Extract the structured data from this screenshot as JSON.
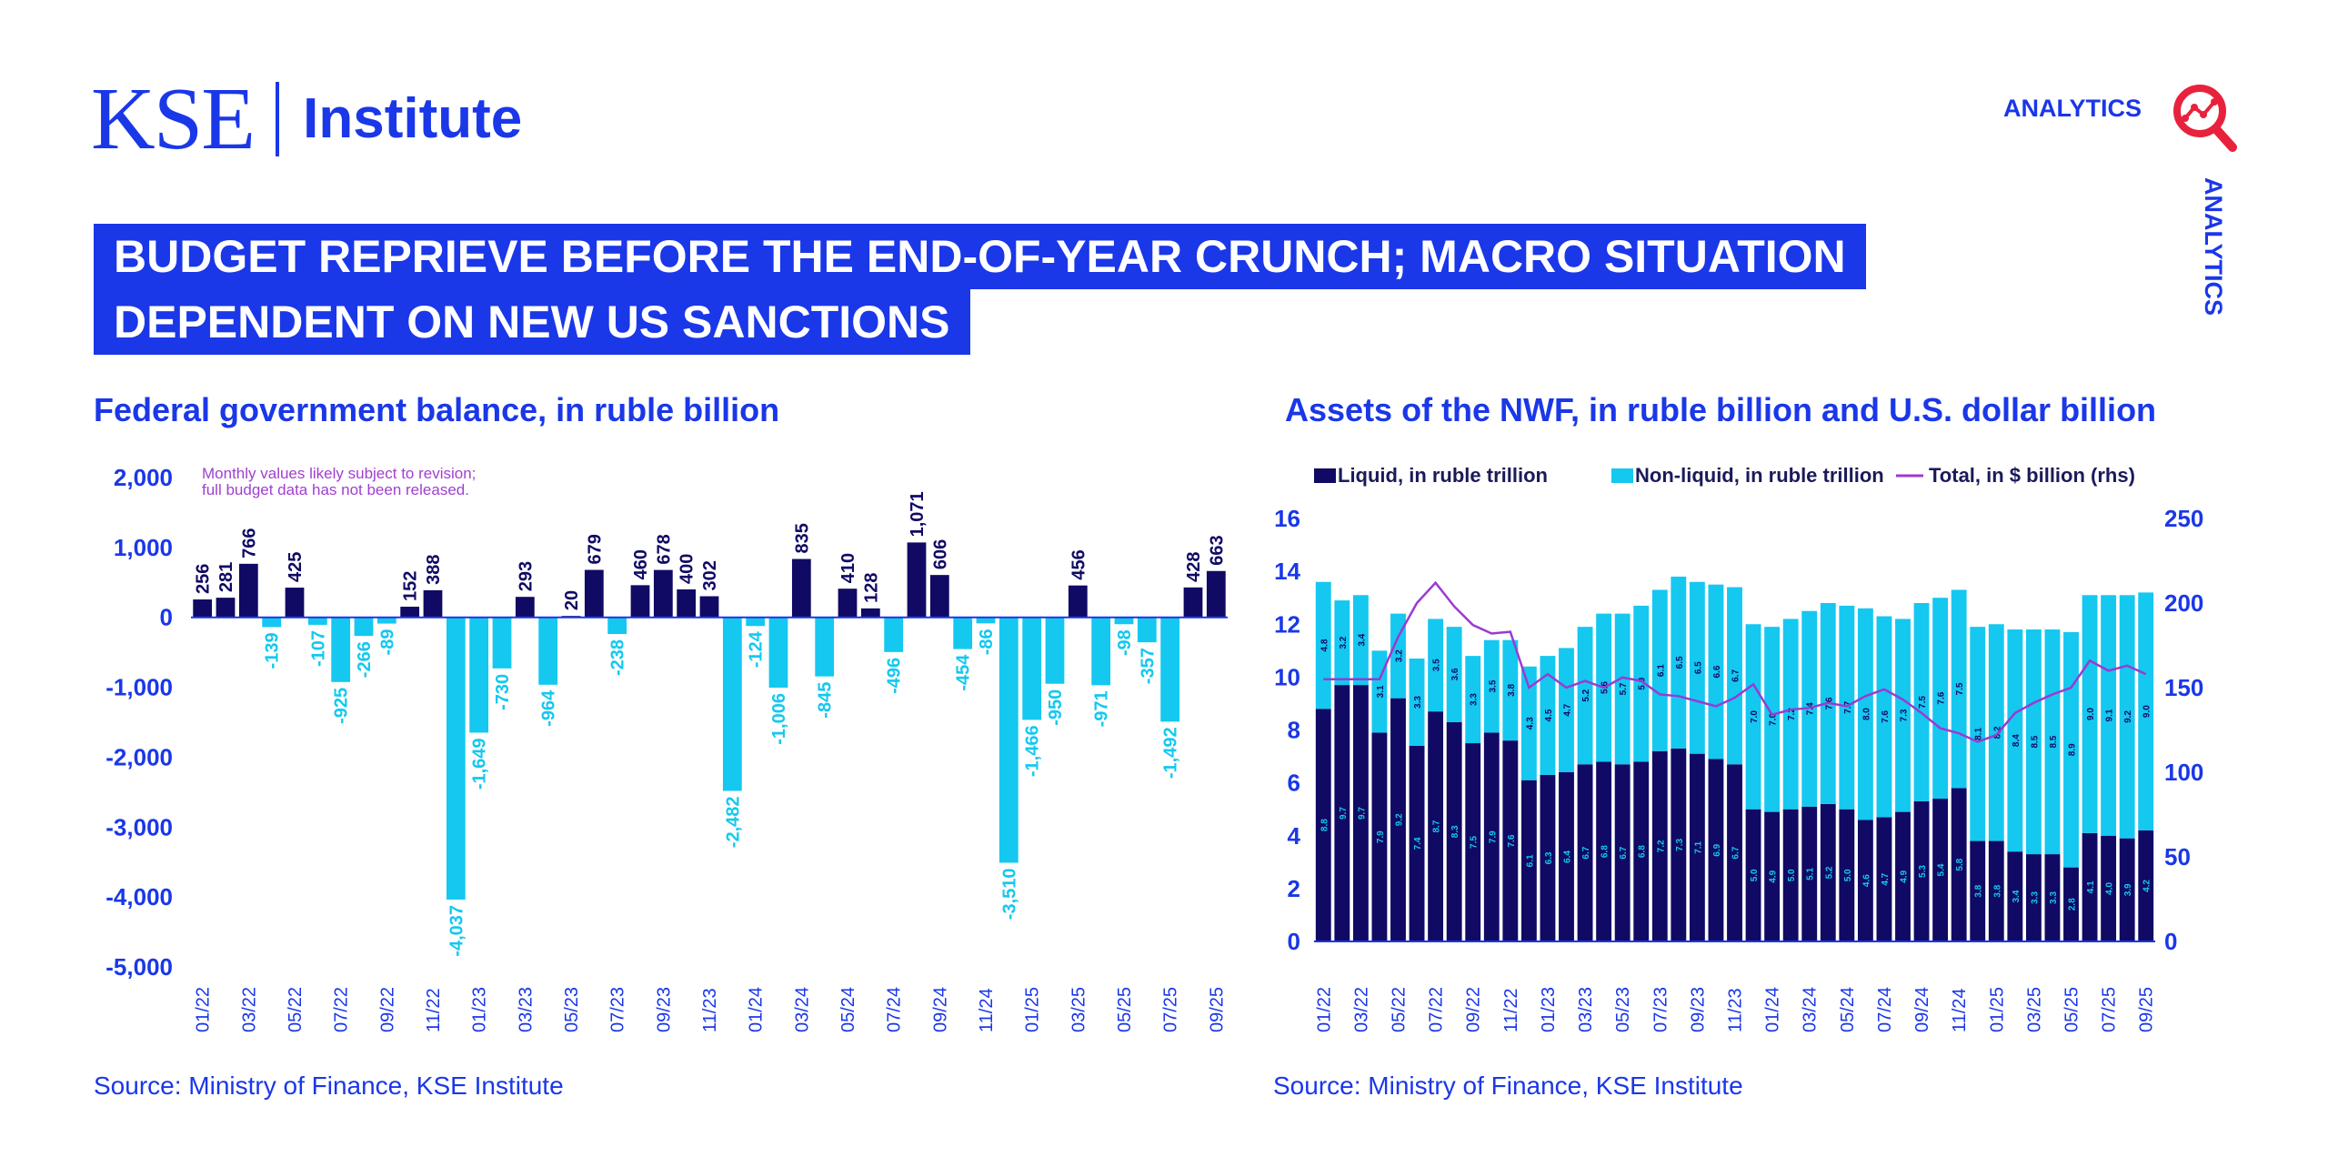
{
  "brand": {
    "kse": "KSE",
    "institute": "Institute",
    "analytics": "ANALYTICS"
  },
  "colors": {
    "brand_blue": "#1a37e8",
    "navy": "#100a64",
    "cyan": "#14c8f0",
    "purple": "#9b3ad2",
    "icon_red": "#e8223c"
  },
  "headline": {
    "line1": "BUDGET REPRIEVE BEFORE THE END-OF-YEAR CRUNCH; MACRO SITUATION",
    "line2": "DEPENDENT ON NEW US SANCTIONS"
  },
  "left_chart": {
    "title": "Federal government balance, in ruble billion",
    "note_line1": "Monthly values likely subject to revision;",
    "note_line2": "full budget data has not been released.",
    "source": "Source: Ministry of Finance, KSE Institute"
  },
  "right_chart": {
    "title": "Assets of the NWF, in ruble billion and U.S. dollar billion",
    "source": "Source: Ministry of Finance, KSE Institute"
  },
  "chart_data": [
    {
      "type": "bar",
      "title": "Federal government balance, in ruble billion",
      "ylim": [
        -5000,
        2000
      ],
      "yticks": [
        "2,000",
        "1,000",
        "0",
        "-1,000",
        "-2,000",
        "-3,000",
        "-4,000",
        "-5,000"
      ],
      "ytick_values": [
        2000,
        1000,
        0,
        -1000,
        -2000,
        -3000,
        -4000,
        -5000
      ],
      "categories": [
        "01/22",
        "02/22",
        "03/22",
        "04/22",
        "05/22",
        "06/22",
        "07/22",
        "08/22",
        "09/22",
        "10/22",
        "11/22",
        "12/22",
        "01/23",
        "02/23",
        "03/23",
        "04/23",
        "05/23",
        "06/23",
        "07/23",
        "08/23",
        "09/23",
        "10/23",
        "11/23",
        "12/23",
        "01/24",
        "02/24",
        "03/24",
        "04/24",
        "05/24",
        "06/24",
        "07/24",
        "08/24",
        "09/24",
        "10/24",
        "11/24",
        "12/24",
        "01/25",
        "02/25",
        "03/25",
        "04/25",
        "05/25",
        "06/25",
        "07/25",
        "08/25",
        "09/25"
      ],
      "xtick_labels": [
        "01/22",
        "03/22",
        "05/22",
        "07/22",
        "09/22",
        "11/22",
        "01/23",
        "03/23",
        "05/23",
        "07/23",
        "09/23",
        "11/23",
        "01/24",
        "03/24",
        "05/24",
        "07/24",
        "09/24",
        "11/24",
        "01/25",
        "03/25",
        "05/25",
        "07/25",
        "09/25"
      ],
      "values": [
        256,
        281,
        766,
        -139,
        425,
        -107,
        -925,
        -266,
        -89,
        152,
        388,
        -4037,
        -1649,
        -730,
        293,
        -964,
        20,
        679,
        -238,
        460,
        678,
        400,
        302,
        -2482,
        -124,
        -1006,
        835,
        -845,
        410,
        128,
        -496,
        1071,
        606,
        -454,
        -86,
        -3510,
        -1466,
        -950,
        456,
        -971,
        -98,
        -357,
        -1492,
        428,
        663
      ],
      "data_labels": [
        "256",
        "281",
        "766",
        "-139",
        "425",
        "-107",
        "-925",
        "-266",
        "-89",
        "152",
        "388",
        "-4,037",
        "-1,649",
        "-730",
        "293",
        "-964",
        "20",
        "679",
        "-238",
        "460",
        "678",
        "400",
        "302",
        "-2,482",
        "-124",
        "-1,006",
        "835",
        "-845",
        "410",
        "128",
        "-496",
        "1,071",
        "606",
        "-454",
        "-86",
        "-3,510",
        "-1,466",
        "-950",
        "456",
        "-971",
        "-98",
        "-357",
        "-1,492",
        "428",
        "663"
      ],
      "positive_color": "#100a64",
      "negative_color": "#14c8f0"
    },
    {
      "type": "bar",
      "stacked": true,
      "title": "Assets of the NWF, in ruble billion and U.S. dollar billion",
      "ylim": [
        0,
        16
      ],
      "yticks": [
        "16",
        "14",
        "12",
        "10",
        "8",
        "6",
        "4",
        "2",
        "0"
      ],
      "ytick_values": [
        16,
        14,
        12,
        10,
        8,
        6,
        4,
        2,
        0
      ],
      "y2lim": [
        0,
        250
      ],
      "y2ticks": [
        "250",
        "200",
        "150",
        "100",
        "50",
        "0"
      ],
      "y2tick_values": [
        250,
        200,
        150,
        100,
        50,
        0
      ],
      "legend_position": "top",
      "categories": [
        "01/22",
        "02/22",
        "03/22",
        "04/22",
        "05/22",
        "06/22",
        "07/22",
        "08/22",
        "09/22",
        "10/22",
        "11/22",
        "12/22",
        "01/23",
        "02/23",
        "03/23",
        "04/23",
        "05/23",
        "06/23",
        "07/23",
        "08/23",
        "09/23",
        "10/23",
        "11/23",
        "12/23",
        "01/24",
        "02/24",
        "03/24",
        "04/24",
        "05/24",
        "06/24",
        "07/24",
        "08/24",
        "09/24",
        "10/24",
        "11/24",
        "12/24",
        "01/25",
        "02/25",
        "03/25",
        "04/25",
        "05/25",
        "06/25",
        "07/25",
        "08/25",
        "09/25"
      ],
      "xtick_labels": [
        "01/22",
        "03/22",
        "05/22",
        "07/22",
        "09/22",
        "11/22",
        "01/23",
        "03/23",
        "05/23",
        "07/23",
        "09/23",
        "11/23",
        "01/24",
        "03/24",
        "05/24",
        "07/24",
        "09/24",
        "11/24",
        "01/25",
        "03/25",
        "05/25",
        "07/25",
        "09/25"
      ],
      "series": [
        {
          "name": "Liquid, in ruble trillion",
          "color": "#100a64",
          "axis": "left",
          "values": [
            8.8,
            9.7,
            9.7,
            7.9,
            9.2,
            7.4,
            8.7,
            8.3,
            7.5,
            7.9,
            7.6,
            6.1,
            6.3,
            6.4,
            6.7,
            6.8,
            6.7,
            6.8,
            7.2,
            7.3,
            7.1,
            6.9,
            6.7,
            5.0,
            4.9,
            5.0,
            5.1,
            5.2,
            5.0,
            4.6,
            4.7,
            4.9,
            5.3,
            5.4,
            5.8,
            3.8,
            3.8,
            3.4,
            3.3,
            3.3,
            2.8,
            4.1,
            4.0,
            3.9,
            4.2
          ]
        },
        {
          "name": "Non-liquid, in ruble trillion",
          "color": "#14c8f0",
          "axis": "left",
          "values": [
            4.8,
            3.2,
            3.4,
            3.1,
            3.2,
            3.3,
            3.5,
            3.6,
            3.3,
            3.5,
            3.8,
            4.3,
            4.5,
            4.7,
            5.2,
            5.6,
            5.7,
            5.9,
            6.1,
            6.5,
            6.5,
            6.6,
            6.7,
            7.0,
            7.0,
            7.2,
            7.4,
            7.6,
            7.7,
            8.0,
            7.6,
            7.3,
            7.5,
            7.6,
            7.5,
            8.1,
            8.2,
            8.4,
            8.5,
            8.5,
            8.9,
            9.0,
            9.1,
            9.2,
            9.0
          ]
        },
        {
          "name": "Total, in $ billion (rhs)",
          "color": "#9b3ad2",
          "axis": "right",
          "type": "line",
          "values": [
            155,
            155,
            155,
            155,
            180,
            200,
            212,
            198,
            187,
            182,
            183,
            150,
            158,
            150,
            154,
            150,
            156,
            154,
            146,
            145,
            142,
            139,
            144,
            152,
            134,
            137,
            138,
            141,
            139,
            145,
            149,
            143,
            135,
            126,
            123,
            118,
            122,
            135,
            141,
            146,
            150,
            166,
            160,
            163,
            158
          ]
        }
      ],
      "liquid_labels": [
        "8.8",
        "9.7",
        "9.7",
        "7.9",
        "9.2",
        "7.4",
        "8.7",
        "8.3",
        "7.5",
        "7.9",
        "7.6",
        "6.1",
        "6.3",
        "6.4",
        "6.7",
        "6.8",
        "6.7",
        "6.8",
        "7.2",
        "7.3",
        "7.1",
        "6.9",
        "6.7",
        "5.0",
        "4.9",
        "5.0",
        "5.1",
        "5.2",
        "5.0",
        "4.6",
        "4.7",
        "4.9",
        "5.3",
        "5.4",
        "5.8",
        "3.8",
        "3.8",
        "3.4",
        "3.3",
        "3.3",
        "2.8",
        "4.1",
        "4.0",
        "3.9",
        "4.2"
      ],
      "nonliquid_labels": [
        "4.8",
        "3.2",
        "3.4",
        "3.1",
        "3.2",
        "3.3",
        "3.5",
        "3.6",
        "3.3",
        "3.5",
        "3.8",
        "4.3",
        "4.5",
        "4.7",
        "5.2",
        "5.6",
        "5.7",
        "5.9",
        "6.1",
        "6.5",
        "6.5",
        "6.6",
        "6.7",
        "7.0",
        "7.0",
        "7.2",
        "7.4",
        "7.6",
        "7.7",
        "8.0",
        "7.6",
        "7.3",
        "7.5",
        "7.6",
        "7.5",
        "8.1",
        "8.2",
        "8.4",
        "8.5",
        "8.5",
        "8.9",
        "9.0",
        "9.1",
        "9.2",
        "9.0"
      ]
    }
  ]
}
